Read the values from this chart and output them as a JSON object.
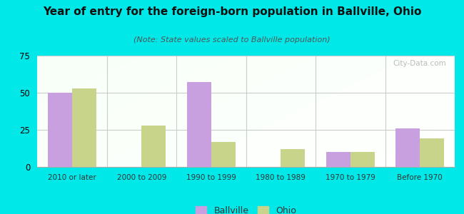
{
  "title": "Year of entry for the foreign-born population in Ballville, Ohio",
  "subtitle": "(Note: State values scaled to Ballville population)",
  "categories": [
    "2010 or later",
    "2000 to 2009",
    "1990 to 1999",
    "1980 to 1989",
    "1970 to 1979",
    "Before 1970"
  ],
  "ballville_values": [
    50,
    0,
    57,
    0,
    10,
    26
  ],
  "ohio_values": [
    53,
    28,
    17,
    12,
    10,
    19
  ],
  "ballville_color": "#c8a0e0",
  "ohio_color": "#c8d48a",
  "background_color": "#00e8e8",
  "ylim": [
    0,
    75
  ],
  "yticks": [
    0,
    25,
    50,
    75
  ],
  "bar_width": 0.35,
  "legend_labels": [
    "Ballville",
    "Ohio"
  ],
  "watermark": "City-Data.com"
}
